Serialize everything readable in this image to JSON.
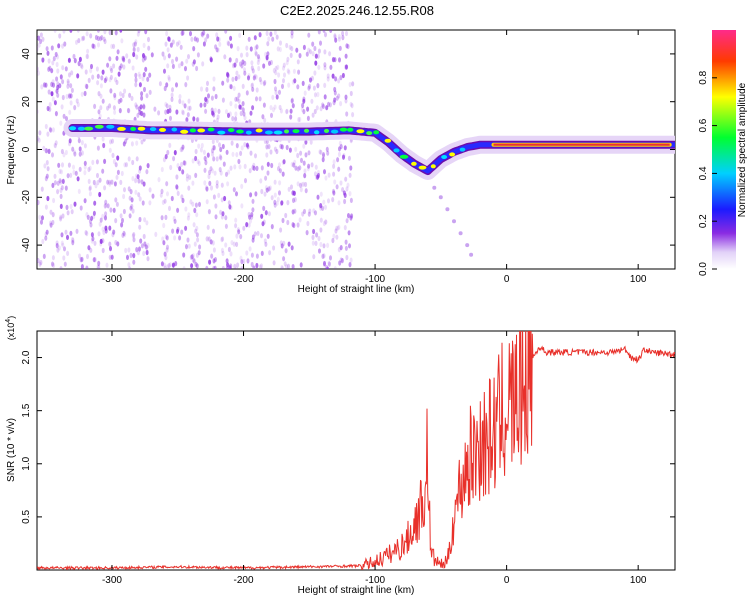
{
  "title": "C2E2.2025.246.12.55.R08",
  "colors": {
    "snr_line": "#e8302a",
    "spectrogram_core": "#e8303a",
    "scatter": "#8a2be2"
  },
  "chart_data": [
    {
      "type": "heatmap",
      "xlabel": "Height of straight line (km)",
      "ylabel": "Frequency (Hz)",
      "xlim": [
        -357,
        128
      ],
      "ylim": [
        -50,
        50
      ],
      "xticks": [
        -300,
        -200,
        -100,
        0,
        100
      ],
      "yticks": [
        -40,
        -20,
        0,
        20,
        40
      ],
      "xticklabels": [
        "-300",
        "-200",
        "-100",
        "0",
        "100"
      ],
      "yticklabels": [
        "-40",
        "-20",
        "0",
        "20",
        "40"
      ],
      "colorbar": {
        "label": "Normalized spectral amplitude",
        "range": [
          0,
          1
        ],
        "ticks": [
          "0.0",
          "0.2",
          "0.4",
          "0.6",
          "0.8"
        ]
      },
      "ridge": {
        "x": [
          -330,
          -300,
          -270,
          -250,
          -200,
          -150,
          -120,
          -100,
          -90,
          -80,
          -70,
          -60,
          -50,
          -40,
          -30,
          -20,
          0,
          50,
          100,
          128
        ],
        "y": [
          9,
          9,
          8,
          8,
          7.5,
          7.5,
          8,
          7,
          3,
          -2,
          -6,
          -9,
          -4,
          -1,
          1,
          2,
          2,
          2,
          2,
          2
        ]
      },
      "branch": {
        "x": [
          -60,
          -55,
          -50,
          -45,
          -40,
          -35,
          -30,
          -27
        ],
        "y": [
          -11,
          -16,
          -20,
          -25,
          -30,
          -35,
          -40,
          -44
        ]
      }
    },
    {
      "type": "line",
      "xlabel": "Height of straight line (km)",
      "ylabel": "SNR (10 * v/v)",
      "yscale_label": "(x10",
      "yscale_exp": "4",
      "yscale_close": ")",
      "xlim": [
        -357,
        128
      ],
      "ylim": [
        0,
        2.25
      ],
      "xticks": [
        -300,
        -200,
        -100,
        0,
        100
      ],
      "yticks": [
        0.5,
        1.0,
        1.5,
        2.0
      ],
      "xticklabels": [
        "-300",
        "-200",
        "-100",
        "0",
        "100"
      ],
      "yticklabels": [
        "0.5",
        "1.0",
        "1.5",
        "2.0"
      ],
      "series": [
        {
          "name": "SNR",
          "x": [
            -357,
            -300,
            -250,
            -200,
            -150,
            -110,
            -100,
            -90,
            -80,
            -75,
            -70,
            -65,
            -62,
            -60,
            -58,
            -55,
            -50,
            -45,
            -40,
            -35,
            -30,
            -25,
            -20,
            -15,
            -10,
            -5,
            0,
            5,
            10,
            15,
            20,
            25,
            30,
            40,
            60,
            80,
            90,
            95,
            100,
            105,
            110,
            128
          ],
          "y": [
            0.02,
            0.02,
            0.03,
            0.02,
            0.03,
            0.04,
            0.08,
            0.14,
            0.22,
            0.3,
            0.42,
            0.6,
            0.7,
            1.2,
            0.2,
            0.1,
            0.05,
            0.08,
            0.5,
            0.8,
            1.0,
            1.1,
            1.2,
            1.2,
            1.3,
            1.4,
            1.6,
            1.55,
            1.7,
            1.9,
            2.0,
            2.1,
            2.05,
            2.05,
            2.05,
            2.05,
            2.08,
            2.0,
            1.98,
            2.08,
            2.05,
            2.03
          ]
        }
      ]
    }
  ]
}
